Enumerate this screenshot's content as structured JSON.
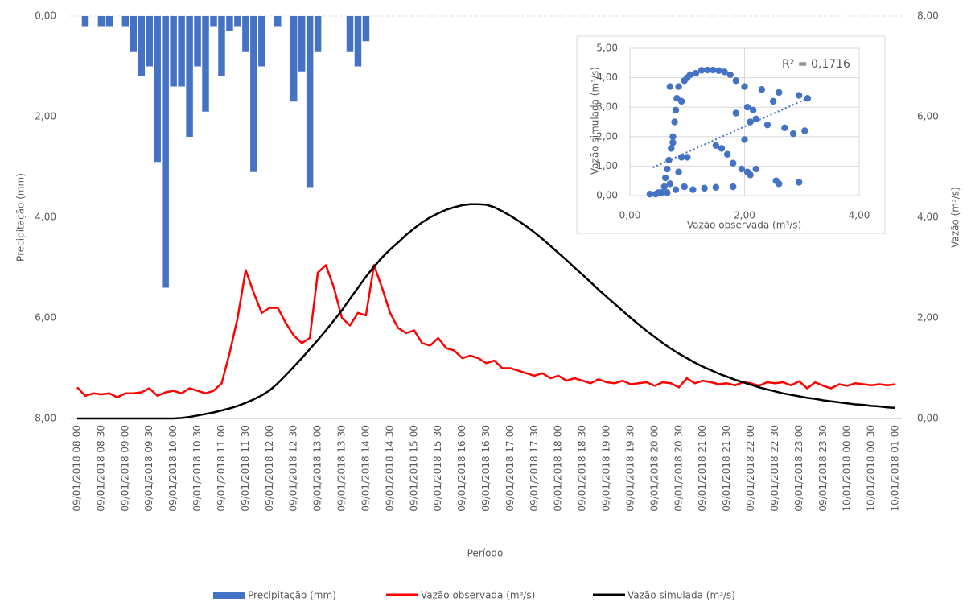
{
  "chart_data": [
    {
      "type": "combo",
      "y_label": "Precipitação (mm)",
      "y2_label": "Vazão (m³/s)",
      "x_label": "Período",
      "categories": [
        "09/01/2018 08:00",
        null,
        null,
        "09/01/2018 08:30",
        null,
        null,
        "09/01/2018 09:00",
        null,
        null,
        "09/01/2018 09:30",
        null,
        null,
        "09/01/2018 10:00",
        null,
        null,
        "09/01/2018 10:30",
        null,
        null,
        "09/01/2018 11:00",
        null,
        null,
        "09/01/2018 11:30",
        null,
        null,
        "09/01/2018 12:00",
        null,
        null,
        "09/01/2018 12:30",
        null,
        null,
        "09/01/2018 13:00",
        null,
        null,
        "09/01/2018 13:30",
        null,
        null,
        "09/01/2018 14:00",
        null,
        null,
        "09/01/2018 14:30",
        null,
        null,
        "09/01/2018 15:00",
        null,
        null,
        "09/01/2018 15:30",
        null,
        null,
        "09/01/2018 16:00",
        null,
        null,
        "09/01/2018 16:30",
        null,
        null,
        "09/01/2018 17:00",
        null,
        null,
        "09/01/2018 17:30",
        null,
        null,
        "09/01/2018 18:00",
        null,
        null,
        "09/01/2018 18:30",
        null,
        null,
        "09/01/2018 19:00",
        null,
        null,
        "09/01/2018 19:30",
        null,
        null,
        "09/01/2018 20:00",
        null,
        null,
        "09/01/2018 20:30",
        null,
        null,
        "09/01/2018 21:00",
        null,
        null,
        "09/01/2018 21:30",
        null,
        null,
        "09/01/2018 22:00",
        null,
        null,
        "09/01/2018 22:30",
        null,
        null,
        "09/01/2018 23:00",
        null,
        null,
        "09/01/2018 23:30",
        null,
        null,
        "10/01/2018 00:00",
        null,
        null,
        "10/01/2018 00:30",
        null,
        null,
        "10/01/2018 01:00"
      ],
      "ylim": [
        0,
        8
      ],
      "y_reversed": true,
      "yticks": [
        {
          "value": 0,
          "label": "0,00"
        },
        {
          "value": 2,
          "label": "2,00"
        },
        {
          "value": 4,
          "label": "4,00"
        },
        {
          "value": 6,
          "label": "6,00"
        },
        {
          "value": 8,
          "label": "8,00"
        }
      ],
      "y2lim": [
        0,
        8
      ],
      "y2ticks": [
        {
          "value": 0,
          "label": "0,00"
        },
        {
          "value": 2,
          "label": "2,00"
        },
        {
          "value": 4,
          "label": "4,00"
        },
        {
          "value": 6,
          "label": "6,00"
        },
        {
          "value": 8,
          "label": "8,00"
        }
      ],
      "series": [
        {
          "name": "Precipitação (mm)",
          "type": "bar",
          "color": "#4472c4",
          "values": [
            0,
            0.2,
            0,
            0.2,
            0.2,
            0,
            0.2,
            0.7,
            1.2,
            1.0,
            2.9,
            5.4,
            1.4,
            1.4,
            2.4,
            1.0,
            1.9,
            0.2,
            1.2,
            0.3,
            0.2,
            0.7,
            3.1,
            1.0,
            0,
            0.2,
            0,
            1.7,
            1.1,
            3.4,
            0.7,
            0,
            0,
            0,
            0.7,
            1.0,
            0.5,
            0,
            0,
            0,
            0,
            0,
            0,
            0,
            0,
            0,
            0,
            0,
            0,
            0,
            0,
            0,
            0,
            0,
            0,
            0,
            0,
            0,
            0,
            0,
            0,
            0,
            0,
            0,
            0,
            0,
            0,
            0,
            0,
            0,
            0,
            0,
            0,
            0,
            0,
            0,
            0,
            0,
            0,
            0,
            0,
            0,
            0,
            0,
            0,
            0,
            0,
            0,
            0,
            0,
            0,
            0,
            0,
            0,
            0,
            0,
            0,
            0,
            0,
            0,
            0,
            0,
            0
          ]
        },
        {
          "name": "Vazão observada (m³/s)",
          "type": "line",
          "axis": "y2",
          "color": "#ff0000",
          "values": [
            0.62,
            0.45,
            0.5,
            0.48,
            0.5,
            0.42,
            0.5,
            0.5,
            0.52,
            0.6,
            0.45,
            0.52,
            0.55,
            0.5,
            0.6,
            0.55,
            0.5,
            0.55,
            0.7,
            1.3,
            2.0,
            2.95,
            2.5,
            2.1,
            2.2,
            2.2,
            1.9,
            1.65,
            1.5,
            1.6,
            2.9,
            3.05,
            2.6,
            2.0,
            1.85,
            2.1,
            2.05,
            3.05,
            2.6,
            2.1,
            1.8,
            1.7,
            1.75,
            1.5,
            1.45,
            1.6,
            1.4,
            1.35,
            1.2,
            1.25,
            1.2,
            1.1,
            1.15,
            1.0,
            1.0,
            0.95,
            0.9,
            0.85,
            0.9,
            0.8,
            0.85,
            0.75,
            0.8,
            0.75,
            0.7,
            0.78,
            0.72,
            0.7,
            0.75,
            0.68,
            0.7,
            0.72,
            0.65,
            0.72,
            0.7,
            0.62,
            0.8,
            0.7,
            0.75,
            0.72,
            0.68,
            0.7,
            0.66,
            0.72,
            0.7,
            0.65,
            0.72,
            0.7,
            0.72,
            0.66,
            0.74,
            0.6,
            0.72,
            0.65,
            0.6,
            0.68,
            0.65,
            0.7,
            0.68,
            0.66,
            0.68,
            0.66,
            0.68
          ]
        },
        {
          "name": "Vazão simulada (m³/s)",
          "type": "line",
          "axis": "y2",
          "color": "#000000",
          "values": [
            0,
            0,
            0,
            0,
            0,
            0,
            0,
            0,
            0,
            0,
            0,
            0,
            0,
            0.01,
            0.03,
            0.06,
            0.09,
            0.12,
            0.16,
            0.2,
            0.25,
            0.31,
            0.38,
            0.46,
            0.56,
            0.7,
            0.86,
            1.03,
            1.2,
            1.38,
            1.56,
            1.75,
            1.95,
            2.15,
            2.38,
            2.6,
            2.82,
            3.02,
            3.2,
            3.36,
            3.5,
            3.65,
            3.78,
            3.9,
            4.0,
            4.08,
            4.15,
            4.2,
            4.24,
            4.26,
            4.26,
            4.25,
            4.2,
            4.12,
            4.03,
            3.93,
            3.82,
            3.7,
            3.57,
            3.43,
            3.29,
            3.15,
            3.0,
            2.86,
            2.71,
            2.56,
            2.42,
            2.28,
            2.14,
            2.0,
            1.87,
            1.74,
            1.62,
            1.5,
            1.39,
            1.29,
            1.2,
            1.11,
            1.03,
            0.96,
            0.89,
            0.83,
            0.77,
            0.72,
            0.67,
            0.62,
            0.58,
            0.54,
            0.5,
            0.47,
            0.44,
            0.41,
            0.39,
            0.36,
            0.34,
            0.32,
            0.3,
            0.28,
            0.27,
            0.25,
            0.24,
            0.22,
            0.21
          ]
        }
      ]
    },
    {
      "type": "scatter",
      "x_label": "Vazão observada (m³/s)",
      "y_label": "Vazão simulada (m³/s)",
      "annotation": "R² = 0,1716",
      "color": "#4472c4",
      "trend_color": "#4472c4",
      "xlim": [
        0,
        4
      ],
      "xticks": [
        {
          "value": 0,
          "label": "0,00"
        },
        {
          "value": 2,
          "label": "2,00"
        },
        {
          "value": 4,
          "label": "4,00"
        }
      ],
      "ylim": [
        0,
        5
      ],
      "yticks": [
        {
          "value": 0,
          "label": "0,00"
        },
        {
          "value": 1,
          "label": "1,00"
        },
        {
          "value": 2,
          "label": "2,00"
        },
        {
          "value": 3,
          "label": "3,00"
        },
        {
          "value": 4,
          "label": "4,00"
        },
        {
          "value": 5,
          "label": "5,00"
        }
      ],
      "grid": true,
      "x": [
        0.35,
        0.45,
        0.5,
        0.55,
        0.6,
        0.62,
        0.65,
        0.68,
        0.7,
        0.72,
        0.75,
        0.78,
        0.8,
        0.82,
        0.85,
        0.9,
        0.95,
        1.0,
        1.05,
        1.15,
        1.25,
        1.35,
        1.45,
        1.55,
        1.65,
        1.75,
        1.85,
        0.7,
        0.75,
        0.85,
        0.9,
        0.95,
        1.1,
        1.3,
        1.5,
        1.8,
        0.65,
        0.8,
        1.0,
        1.5,
        1.6,
        1.7,
        1.8,
        1.85,
        1.95,
        2.0,
        2.1,
        2.05,
        2.15,
        2.2,
        2.3,
        2.1,
        2.2,
        2.4,
        2.5,
        2.6,
        2.55,
        2.7,
        2.85,
        2.95,
        3.05,
        3.1,
        2.95,
        2.6,
        2.0,
        2.05
      ],
      "y": [
        0.05,
        0.05,
        0.1,
        0.1,
        0.3,
        0.6,
        0.9,
        1.2,
        0.4,
        1.6,
        2.0,
        2.5,
        2.9,
        3.3,
        3.7,
        3.2,
        3.9,
        4.0,
        4.1,
        4.15,
        4.25,
        4.26,
        4.26,
        4.24,
        4.2,
        4.1,
        3.9,
        3.7,
        1.8,
        0.8,
        1.3,
        0.3,
        0.2,
        0.25,
        0.28,
        0.3,
        0.1,
        0.2,
        1.3,
        1.7,
        1.6,
        1.4,
        1.1,
        2.8,
        0.9,
        3.7,
        0.7,
        3.0,
        2.9,
        0.9,
        3.6,
        2.5,
        2.6,
        2.4,
        3.2,
        3.5,
        0.5,
        2.3,
        2.1,
        3.4,
        2.2,
        3.3,
        0.45,
        0.4,
        1.9,
        0.8
      ],
      "trendline": {
        "x": [
          0.4,
          3.1
        ],
        "y": [
          0.95,
          3.3
        ]
      }
    }
  ]
}
